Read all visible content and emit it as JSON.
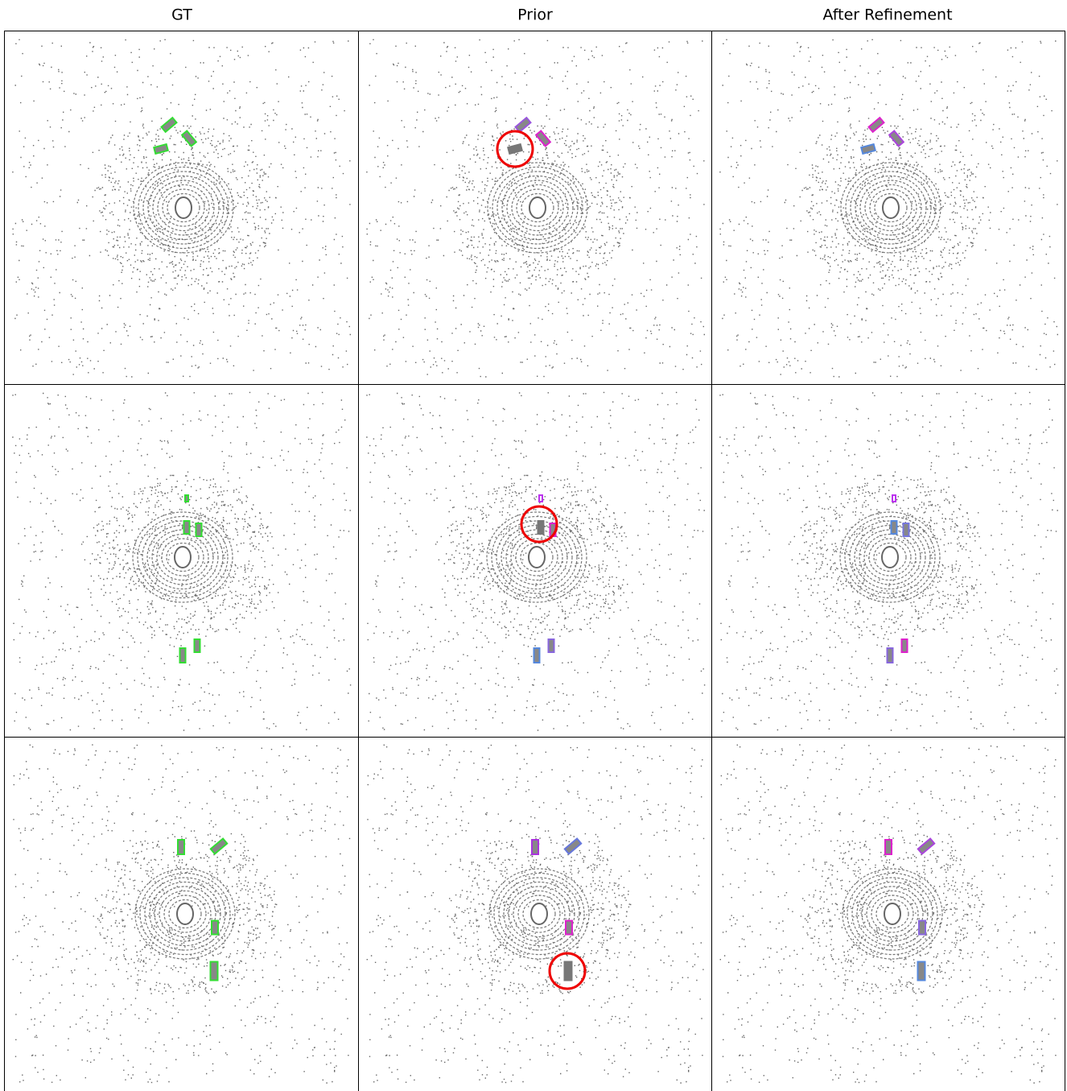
{
  "headers": [
    "GT",
    "Prior",
    "After Refinement"
  ]
}
